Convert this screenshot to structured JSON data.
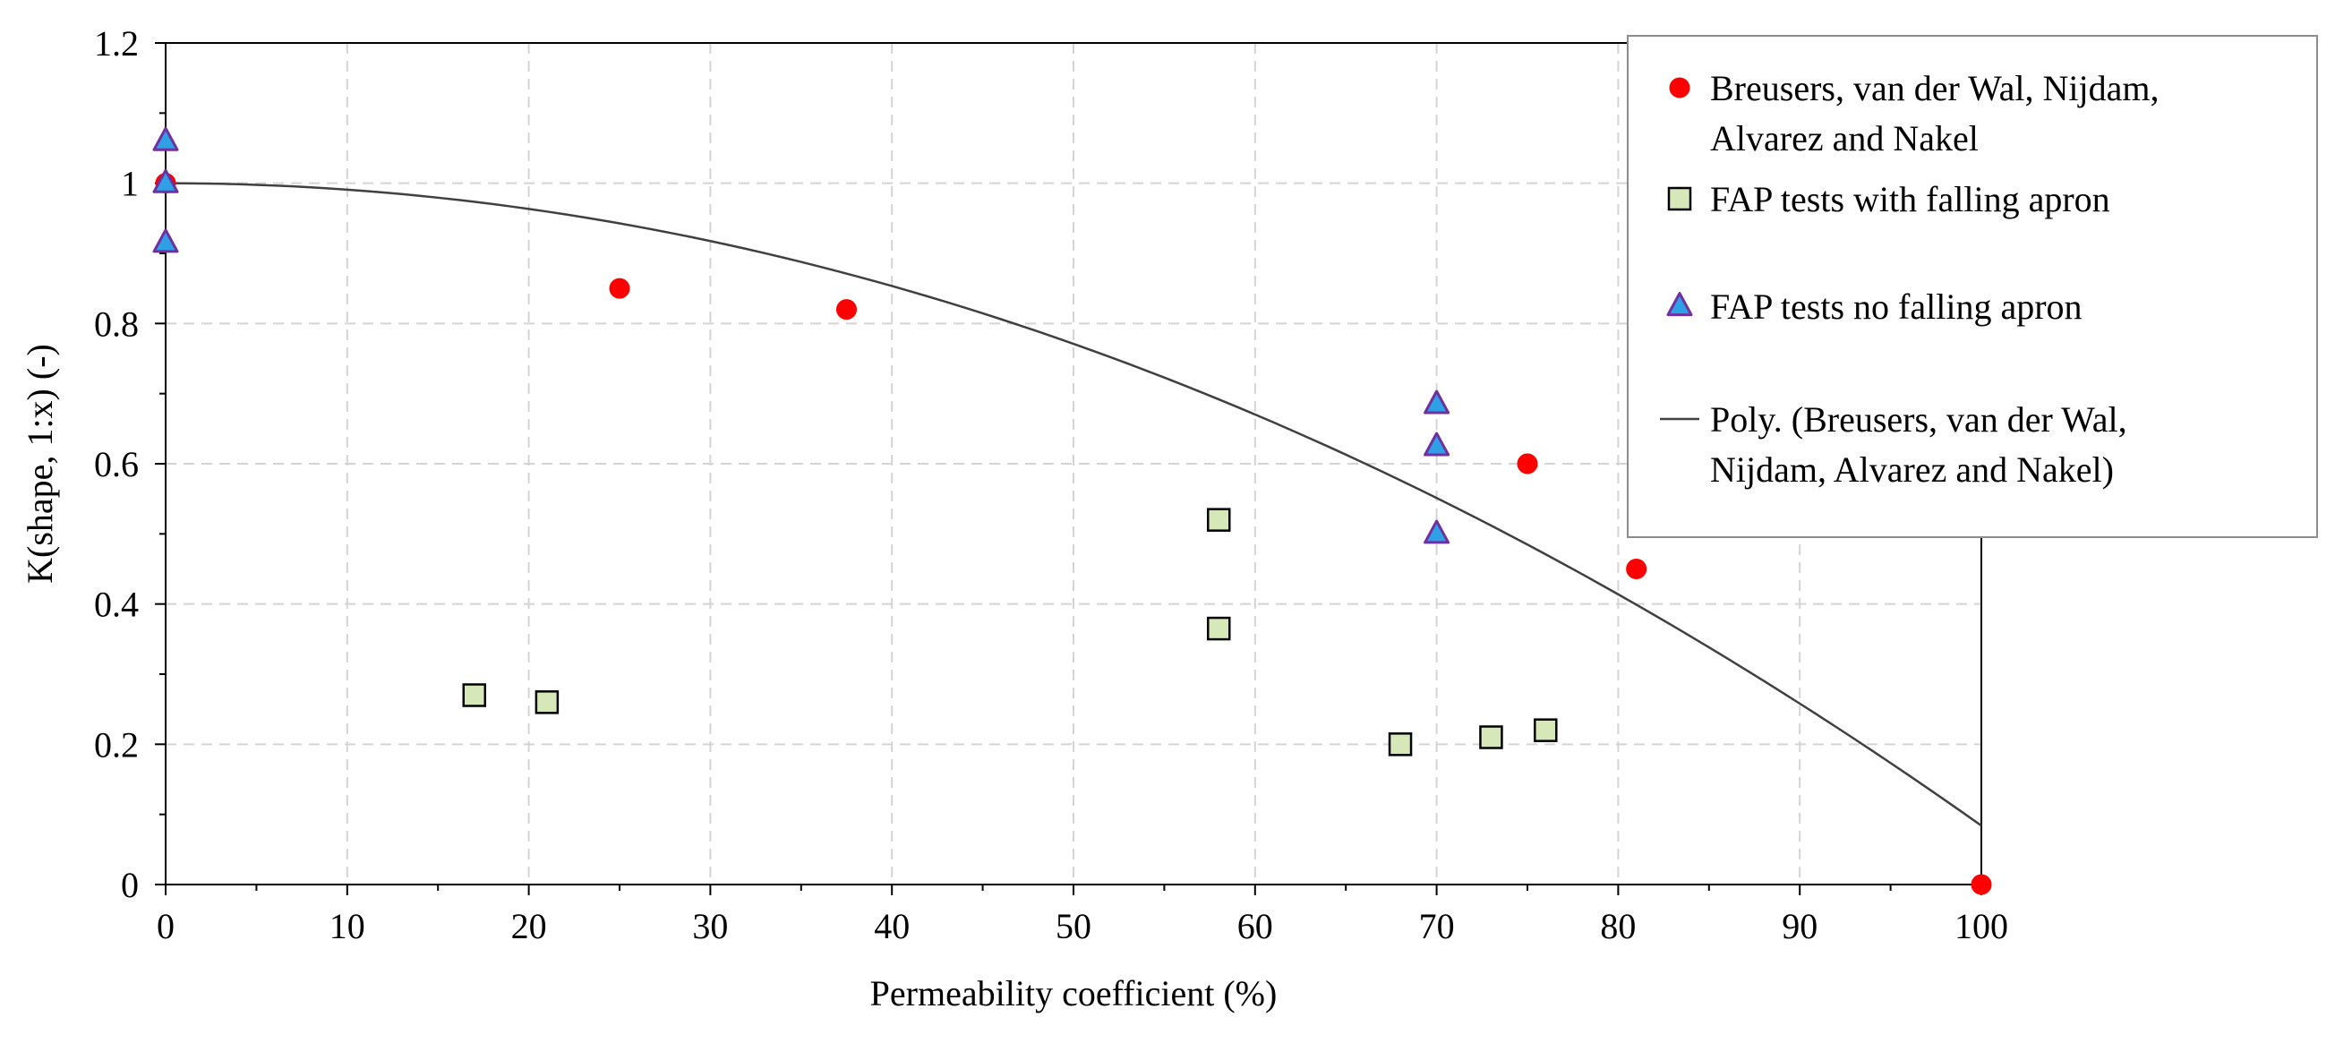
{
  "chart_data": {
    "type": "scatter",
    "title": "",
    "xlabel": "Permeability coefficient (%)",
    "ylabel": "K(shape, 1:x) (-)",
    "xlim": [
      0,
      100
    ],
    "ylim": [
      0,
      1.2
    ],
    "x_ticks": [
      "0",
      "10",
      "20",
      "30",
      "40",
      "50",
      "60",
      "70",
      "80",
      "90",
      "100"
    ],
    "y_ticks": [
      "0",
      "0.2",
      "0.4",
      "0.6",
      "0.8",
      "1",
      "1.2"
    ],
    "grid": true,
    "legend_position": "top-right",
    "series": [
      {
        "name": "Breusers, van der Wal, Nijdam, Alvarez and Nakel",
        "legend_lines": [
          "Breusers, van der Wal, Nijdam,",
          "Alvarez and Nakel"
        ],
        "marker": "circle",
        "color": "#ff0000",
        "points": [
          [
            0,
            1.0
          ],
          [
            25,
            0.85
          ],
          [
            37.5,
            0.82
          ],
          [
            75,
            0.6
          ],
          [
            81,
            0.45
          ],
          [
            100,
            0.0
          ]
        ]
      },
      {
        "name": "FAP tests with falling apron",
        "legend_lines": [
          "FAP tests with falling apron"
        ],
        "marker": "square",
        "color": "#d6e8b8",
        "points": [
          [
            17,
            0.27
          ],
          [
            21,
            0.26
          ],
          [
            58,
            0.52
          ],
          [
            58,
            0.365
          ],
          [
            68,
            0.2
          ],
          [
            73,
            0.21
          ],
          [
            76,
            0.22
          ]
        ]
      },
      {
        "name": "FAP tests no falling apron",
        "legend_lines": [
          "FAP tests no falling apron"
        ],
        "marker": "triangle",
        "color": "#2f9fe6",
        "edge_color": "#7030a0",
        "points": [
          [
            0,
            1.06
          ],
          [
            0,
            1.0
          ],
          [
            0,
            0.915
          ],
          [
            70,
            0.685
          ],
          [
            70,
            0.625
          ],
          [
            70,
            0.5
          ]
        ]
      },
      {
        "name": "Poly. (Breusers, van der Wal, Nijdam, Alvarez and Nakel)",
        "legend_lines": [
          "Poly. (Breusers, van der Wal,",
          "Nijdam,  Alvarez and Nakel)"
        ],
        "marker": "line",
        "color": "#404040",
        "polynomial": {
          "degree": 2,
          "coefficients": [
            1.0,
            0.0,
            -9.16e-05
          ]
        },
        "x_range": [
          0,
          100
        ]
      }
    ]
  }
}
